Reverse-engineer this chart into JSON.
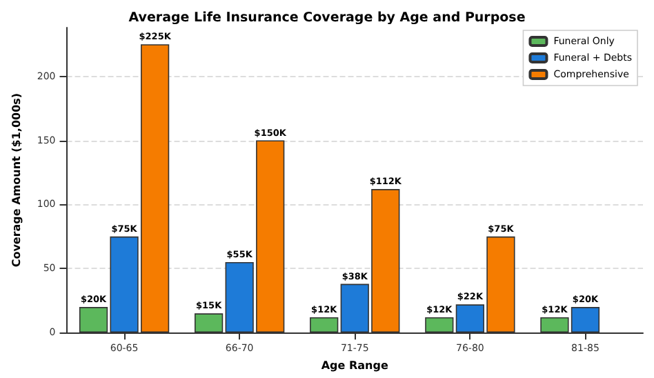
{
  "chart_data": {
    "type": "bar",
    "title": "Average Life Insurance Coverage by Age and Purpose",
    "xlabel": "Age Range",
    "ylabel": "Coverage Amount ($1,000s)",
    "categories": [
      "60-65",
      "66-70",
      "71-75",
      "76-80",
      "81-85"
    ],
    "series": [
      {
        "name": "Funeral Only",
        "color": "#5cb85c",
        "values": [
          20,
          15,
          12,
          12,
          12
        ],
        "value_labels": [
          "$20K",
          "$15K",
          "$12K",
          "$12K",
          "$12K"
        ]
      },
      {
        "name": "Funeral + Debts",
        "color": "#1e7bd8",
        "values": [
          75,
          55,
          38,
          22,
          20
        ],
        "value_labels": [
          "$75K",
          "$55K",
          "$38K",
          "$22K",
          "$20K"
        ]
      },
      {
        "name": "Comprehensive",
        "color": "#f57c00",
        "values": [
          225,
          150,
          112,
          75,
          null
        ],
        "value_labels": [
          "$225K",
          "$150K",
          "$112K",
          "$75K",
          null
        ]
      }
    ],
    "ylim": [
      0,
      238
    ],
    "yticks": [
      0,
      50,
      100,
      150,
      200
    ],
    "grid": "y",
    "legend": "top right"
  }
}
